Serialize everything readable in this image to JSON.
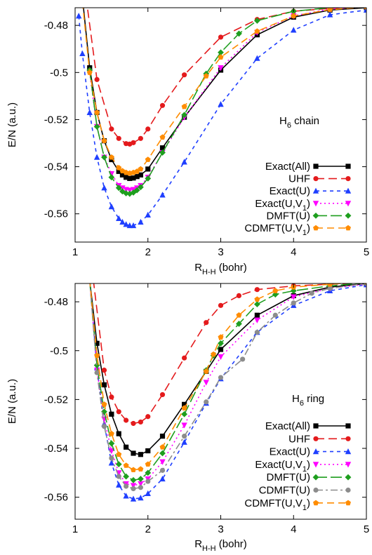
{
  "chart_data": [
    {
      "type": "line",
      "title": "",
      "annotation": {
        "base": "H",
        "sub": "6",
        "tail": " chain"
      },
      "xlabel": {
        "base": "R",
        "sub": "H-H",
        "tail": " (bohr)"
      },
      "ylabel": "E/N (a.u.)",
      "xlim": [
        1,
        5
      ],
      "ylim": [
        -0.572,
        -0.4725
      ],
      "xticks": [
        1,
        2,
        3,
        4,
        5
      ],
      "yticks": [
        -0.48,
        -0.5,
        -0.52,
        -0.54,
        -0.56
      ],
      "ytick_labels": [
        "-0.48",
        "-0.5",
        "-0.52",
        "-0.54",
        "-0.56"
      ],
      "grid": false,
      "legend_position": "bottom-right",
      "series": [
        {
          "name": "Exact(All)",
          "color": "#000000",
          "dash": "",
          "marker": "square",
          "x": [
            1.1,
            1.2,
            1.3,
            1.4,
            1.5,
            1.6,
            1.65,
            1.7,
            1.75,
            1.8,
            1.85,
            1.9,
            2.0,
            2.2,
            2.5,
            3.0,
            3.5,
            4.0,
            4.5,
            5.0
          ],
          "y": [
            -0.468,
            -0.498,
            -0.517,
            -0.529,
            -0.537,
            -0.542,
            -0.5435,
            -0.5445,
            -0.545,
            -0.5448,
            -0.5442,
            -0.5435,
            -0.541,
            -0.532,
            -0.519,
            -0.499,
            -0.484,
            -0.4765,
            -0.4735,
            -0.4725
          ]
        },
        {
          "name": "UHF",
          "color": "#e41a1c",
          "dash": "12,6",
          "marker": "circle",
          "x": [
            1.15,
            1.3,
            1.5,
            1.6,
            1.7,
            1.75,
            1.8,
            1.9,
            2.0,
            2.2,
            2.5,
            3.0,
            3.5,
            4.0,
            4.5,
            5.0
          ],
          "y": [
            -0.468,
            -0.503,
            -0.524,
            -0.528,
            -0.5302,
            -0.5304,
            -0.5298,
            -0.528,
            -0.524,
            -0.514,
            -0.501,
            -0.485,
            -0.4775,
            -0.474,
            -0.4728,
            -0.4722
          ]
        },
        {
          "name": "Exact(U)",
          "color": "#1f3fff",
          "dash": "5,5",
          "marker": "triangle",
          "x": [
            1.05,
            1.1,
            1.2,
            1.3,
            1.4,
            1.5,
            1.6,
            1.65,
            1.7,
            1.75,
            1.8,
            1.9,
            2.0,
            2.2,
            2.5,
            3.0,
            3.5,
            4.0,
            4.5,
            5.0
          ],
          "y": [
            -0.476,
            -0.492,
            -0.517,
            -0.536,
            -0.549,
            -0.557,
            -0.562,
            -0.5635,
            -0.5645,
            -0.565,
            -0.565,
            -0.5635,
            -0.5605,
            -0.552,
            -0.538,
            -0.5135,
            -0.494,
            -0.482,
            -0.4755,
            -0.4735
          ]
        },
        {
          "name": "Exact(U,V1)",
          "color": "#ff00ff",
          "dash": "2,4",
          "marker": "triangle-down",
          "x": [
            1.2,
            1.3,
            1.4,
            1.5,
            1.6,
            1.65,
            1.7,
            1.75,
            1.8,
            1.85,
            1.9,
            2.0,
            2.2,
            2.5,
            3.0,
            3.5,
            4.0,
            4.5,
            5.0
          ],
          "y": [
            -0.5,
            -0.523,
            -0.536,
            -0.543,
            -0.548,
            -0.549,
            -0.5497,
            -0.55,
            -0.5497,
            -0.549,
            -0.548,
            -0.5445,
            -0.534,
            -0.519,
            -0.498,
            -0.483,
            -0.476,
            -0.473,
            -0.4722
          ]
        },
        {
          "name": "DMFT(U)",
          "color": "#1e9e1e",
          "dash": "16,5",
          "marker": "diamond",
          "x": [
            1.2,
            1.3,
            1.4,
            1.5,
            1.6,
            1.65,
            1.7,
            1.75,
            1.8,
            1.85,
            1.9,
            2.0,
            2.2,
            2.5,
            2.8,
            3.0,
            3.25,
            3.5,
            4.0,
            4.5,
            5.0
          ],
          "y": [
            -0.499,
            -0.523,
            -0.536,
            -0.5445,
            -0.549,
            -0.5505,
            -0.5513,
            -0.5515,
            -0.551,
            -0.55,
            -0.5487,
            -0.545,
            -0.534,
            -0.518,
            -0.5005,
            -0.4915,
            -0.4835,
            -0.478,
            -0.474,
            -0.4725,
            -0.4718
          ]
        },
        {
          "name": "CDMFT(U,V1)",
          "color": "#ff8c00",
          "dash": "10,6",
          "marker": "pentagon",
          "x": [
            1.1,
            1.2,
            1.3,
            1.4,
            1.5,
            1.6,
            1.65,
            1.7,
            1.75,
            1.8,
            1.85,
            1.9,
            2.0,
            2.2,
            2.5,
            2.8,
            3.0,
            3.5,
            4.0,
            4.5,
            5.0
          ],
          "y": [
            -0.47,
            -0.5,
            -0.517,
            -0.529,
            -0.536,
            -0.5405,
            -0.5418,
            -0.5425,
            -0.5428,
            -0.5425,
            -0.542,
            -0.541,
            -0.537,
            -0.5275,
            -0.5145,
            -0.5015,
            -0.4935,
            -0.4825,
            -0.476,
            -0.4733,
            -0.4722
          ]
        }
      ]
    },
    {
      "type": "line",
      "title": "",
      "annotation": {
        "base": "H",
        "sub": "6",
        "tail": " ring"
      },
      "xlabel": {
        "base": "R",
        "sub": "H-H",
        "tail": " (bohr)"
      },
      "ylabel": "E/N (a.u.)",
      "xlim": [
        1,
        5
      ],
      "ylim": [
        -0.569,
        -0.4725
      ],
      "xticks": [
        1,
        2,
        3,
        4,
        5
      ],
      "yticks": [
        -0.48,
        -0.5,
        -0.52,
        -0.54,
        -0.56
      ],
      "ytick_labels": [
        "-0.48",
        "-0.5",
        "-0.52",
        "-0.54",
        "-0.56"
      ],
      "grid": false,
      "legend_position": "bottom-right",
      "series": [
        {
          "name": "Exact(All)",
          "color": "#000000",
          "dash": "",
          "marker": "square",
          "x": [
            1.2,
            1.3,
            1.4,
            1.5,
            1.6,
            1.7,
            1.8,
            1.9,
            2.0,
            2.2,
            2.5,
            2.8,
            3.0,
            3.5,
            4.0,
            4.5,
            5.0
          ],
          "y": [
            -0.471,
            -0.497,
            -0.514,
            -0.526,
            -0.534,
            -0.5395,
            -0.542,
            -0.5425,
            -0.541,
            -0.535,
            -0.522,
            -0.5085,
            -0.4995,
            -0.4855,
            -0.4775,
            -0.474,
            -0.4725
          ]
        },
        {
          "name": "UHF",
          "color": "#e41a1c",
          "dash": "12,6",
          "marker": "circle",
          "x": [
            1.25,
            1.4,
            1.5,
            1.6,
            1.7,
            1.8,
            1.9,
            2.0,
            2.2,
            2.5,
            2.8,
            3.0,
            3.25,
            3.5,
            4.0,
            4.5,
            5.0
          ],
          "y": [
            -0.471,
            -0.508,
            -0.519,
            -0.525,
            -0.5285,
            -0.5298,
            -0.5292,
            -0.527,
            -0.518,
            -0.503,
            -0.4885,
            -0.4815,
            -0.4775,
            -0.475,
            -0.4735,
            -0.4728,
            -0.4722
          ]
        },
        {
          "name": "Exact(U)",
          "color": "#1f3fff",
          "dash": "5,5",
          "marker": "triangle",
          "x": [
            1.2,
            1.3,
            1.4,
            1.5,
            1.6,
            1.7,
            1.8,
            1.9,
            2.0,
            2.2,
            2.5,
            2.8,
            3.0,
            3.5,
            4.0,
            4.5,
            5.0
          ],
          "y": [
            -0.471,
            -0.507,
            -0.53,
            -0.546,
            -0.555,
            -0.5595,
            -0.5607,
            -0.5603,
            -0.5585,
            -0.5525,
            -0.5375,
            -0.5215,
            -0.5115,
            -0.4925,
            -0.4815,
            -0.4755,
            -0.473
          ]
        },
        {
          "name": "Exact(U,V1)",
          "color": "#ff00ff",
          "dash": "2,4",
          "marker": "triangle-down",
          "x": [
            1.2,
            1.3,
            1.4,
            1.5,
            1.6,
            1.7,
            1.8,
            1.9,
            2.0,
            2.2,
            2.5,
            2.8,
            3.0,
            3.5,
            4.0,
            4.5,
            5.0
          ],
          "y": [
            -0.471,
            -0.508,
            -0.528,
            -0.541,
            -0.55,
            -0.5545,
            -0.5552,
            -0.5545,
            -0.5525,
            -0.5455,
            -0.5305,
            -0.513,
            -0.5025,
            -0.4875,
            -0.478,
            -0.4745,
            -0.4728
          ]
        },
        {
          "name": "DMFT(U)",
          "color": "#1e9e1e",
          "dash": "16,5",
          "marker": "diamond",
          "x": [
            1.2,
            1.3,
            1.4,
            1.5,
            1.6,
            1.7,
            1.8,
            1.9,
            2.0,
            2.2,
            2.5,
            2.8,
            2.9,
            3.0,
            3.25,
            3.5,
            3.75,
            4.0,
            4.5,
            5.0
          ],
          "y": [
            -0.471,
            -0.506,
            -0.525,
            -0.538,
            -0.5465,
            -0.5515,
            -0.553,
            -0.5525,
            -0.55,
            -0.542,
            -0.526,
            -0.508,
            -0.502,
            -0.497,
            -0.489,
            -0.481,
            -0.477,
            -0.4755,
            -0.4735,
            -0.4722
          ]
        },
        {
          "name": "CDMFT(U)",
          "color": "#8c8c8c",
          "dash": "10,4,3,4",
          "marker": "circle",
          "x": [
            1.2,
            1.3,
            1.4,
            1.5,
            1.6,
            1.7,
            1.8,
            1.9,
            2.0,
            2.2,
            2.5,
            2.8,
            3.0,
            3.3,
            3.5,
            3.75,
            4.0,
            4.25,
            4.5,
            5.0
          ],
          "y": [
            -0.471,
            -0.509,
            -0.531,
            -0.544,
            -0.5515,
            -0.5555,
            -0.5565,
            -0.556,
            -0.5535,
            -0.549,
            -0.535,
            -0.521,
            -0.511,
            -0.5035,
            -0.4925,
            -0.4855,
            -0.4805,
            -0.4765,
            -0.4745,
            -0.4725
          ]
        },
        {
          "name": "CDMFT(U,V1)",
          "color": "#ff8c00",
          "dash": "10,6",
          "marker": "pentagon",
          "x": [
            1.2,
            1.3,
            1.4,
            1.5,
            1.6,
            1.7,
            1.8,
            1.9,
            2.0,
            2.2,
            2.5,
            2.8,
            2.9,
            3.0,
            3.25,
            3.5,
            3.75,
            4.0,
            4.5,
            5.0
          ],
          "y": [
            -0.471,
            -0.502,
            -0.522,
            -0.534,
            -0.5425,
            -0.547,
            -0.5488,
            -0.5485,
            -0.5465,
            -0.5395,
            -0.5235,
            -0.5085,
            -0.5015,
            -0.4945,
            -0.4855,
            -0.479,
            -0.4755,
            -0.474,
            -0.4728,
            -0.4718
          ]
        }
      ]
    }
  ]
}
